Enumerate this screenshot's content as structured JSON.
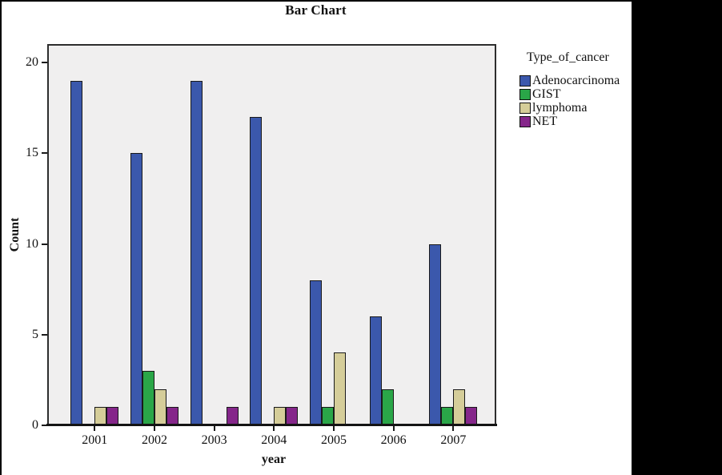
{
  "figure_title": "Bar Chart",
  "chart_data": {
    "type": "bar",
    "title": "Bar Chart",
    "xlabel": "year",
    "ylabel": "Count",
    "categories": [
      "2001",
      "2002",
      "2003",
      "2004",
      "2005",
      "2006",
      "2007"
    ],
    "series": [
      {
        "name": "Adenocarcinoma",
        "color": "#3B58AC",
        "values": [
          19,
          15,
          19,
          17,
          8,
          6,
          10
        ]
      },
      {
        "name": "GIST",
        "color": "#2AA648",
        "values": [
          0,
          3,
          0,
          0,
          1,
          2,
          1
        ]
      },
      {
        "name": "lymphoma",
        "color": "#D5CD99",
        "values": [
          1,
          2,
          0,
          1,
          4,
          0,
          2
        ]
      },
      {
        "name": "NET",
        "color": "#85268A",
        "values": [
          1,
          1,
          1,
          1,
          0,
          0,
          1
        ]
      }
    ],
    "ylim": [
      0,
      21
    ],
    "yticks": [
      0,
      5,
      10,
      15,
      20
    ],
    "grid": false,
    "legend_position": "right",
    "bar_mode": "grouped"
  },
  "legend": {
    "title": "Type_of_cancer"
  },
  "colors": {
    "plot_background": "#F0EFEF",
    "bar_border": "#1A1A1A",
    "axis": "#141414",
    "frame": "#000000",
    "page_background": "#FFFFFF"
  }
}
